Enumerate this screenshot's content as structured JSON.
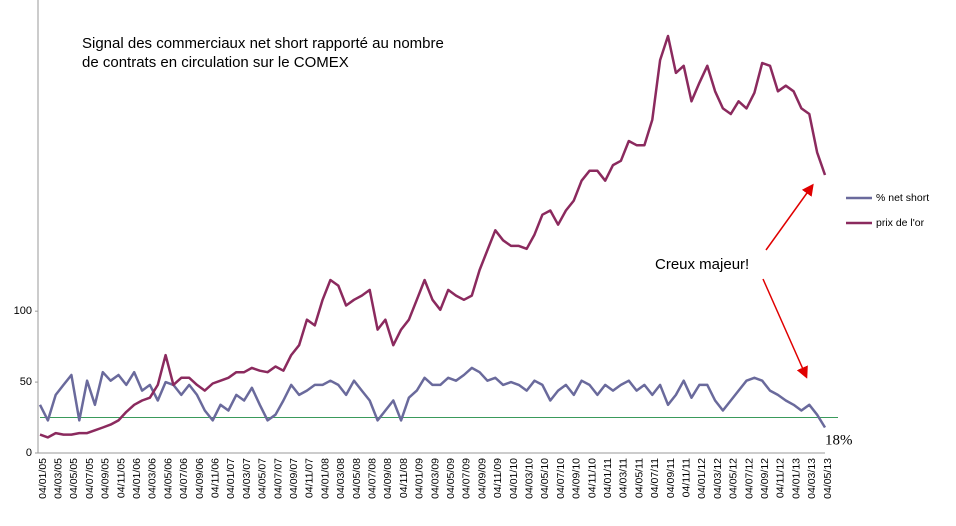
{
  "chart_data": {
    "type": "line",
    "title": [
      "Signal des commerciaux net short rapporté au nombre",
      "de contrats en circulation sur le COMEX"
    ],
    "categories": [
      "04/01/05",
      null,
      "04/03/05",
      null,
      "04/05/05",
      null,
      "04/07/05",
      null,
      "04/09/05",
      null,
      "04/11/05",
      null,
      "04/01/06",
      null,
      "04/03/06",
      null,
      "04/05/06",
      null,
      "04/07/06",
      null,
      "04/09/06",
      null,
      "04/11/06",
      null,
      "04/01/07",
      null,
      "04/03/07",
      null,
      "04/05/07",
      null,
      "04/07/07",
      null,
      "04/09/07",
      null,
      "04/11/07",
      null,
      "04/01/08",
      null,
      "04/03/08",
      null,
      "04/05/08",
      null,
      "04/07/08",
      null,
      "04/09/08",
      null,
      "04/11/08",
      null,
      "04/01/09",
      null,
      "04/03/09",
      null,
      "04/05/09",
      null,
      "04/07/09",
      null,
      "04/09/09",
      null,
      "04/11/09",
      null,
      "04/01/10",
      null,
      "04/03/10",
      null,
      "04/05/10",
      null,
      "04/07/10",
      null,
      "04/09/10",
      null,
      "04/11/10",
      null,
      "04/01/11",
      null,
      "04/03/11",
      null,
      "04/05/11",
      null,
      "04/07/11",
      null,
      "04/09/11",
      null,
      "04/11/11",
      null,
      "04/01/12",
      null,
      "04/03/12",
      null,
      "04/05/12",
      null,
      "04/07/12",
      null,
      "04/09/12",
      null,
      "04/11/12",
      null,
      "04/01/13",
      null,
      "04/03/13",
      null,
      "04/05/13"
    ],
    "series": [
      {
        "name": "% net short",
        "color": "#6a6a9c",
        "values": [
          34,
          23,
          41,
          48,
          55,
          23,
          51,
          34,
          57,
          51,
          55,
          48,
          57,
          44,
          48,
          37,
          50,
          48,
          41,
          48,
          41,
          30,
          23,
          34,
          30,
          41,
          37,
          46,
          34,
          23,
          27,
          37,
          48,
          41,
          44,
          48,
          48,
          51,
          48,
          41,
          51,
          44,
          37,
          23,
          30,
          37,
          23,
          39,
          44,
          53,
          48,
          48,
          53,
          51,
          55,
          60,
          57,
          51,
          53,
          48,
          50,
          48,
          44,
          51,
          48,
          37,
          44,
          48,
          41,
          51,
          48,
          41,
          48,
          44,
          48,
          51,
          44,
          48,
          41,
          48,
          34,
          41,
          51,
          39,
          48,
          48,
          37,
          30,
          37,
          44,
          51,
          53,
          51,
          44,
          41,
          37,
          34,
          30,
          34,
          27,
          18
        ]
      },
      {
        "name": "prix de l'or",
        "color": "#8b2a5e",
        "values": [
          13,
          11,
          14,
          13,
          13,
          14,
          14,
          16,
          18,
          20,
          23,
          29,
          34,
          37,
          39,
          48,
          69,
          48,
          53,
          53,
          48,
          44,
          49,
          51,
          53,
          57,
          57,
          60,
          58,
          57,
          61,
          58,
          69,
          76,
          94,
          90,
          108,
          122,
          118,
          104,
          108,
          111,
          115,
          87,
          94,
          76,
          87,
          94,
          108,
          122,
          108,
          101,
          115,
          111,
          108,
          111,
          129,
          143,
          157,
          150,
          146,
          146,
          144,
          154,
          168,
          171,
          161,
          171,
          178,
          192,
          199,
          199,
          192,
          203,
          206,
          220,
          217,
          217,
          235,
          277,
          294,
          268,
          273,
          248,
          261,
          273,
          255,
          243,
          239,
          248,
          243,
          254,
          275,
          273,
          255,
          259,
          255,
          243,
          239,
          212,
          196
        ]
      }
    ],
    "ylim": [
      0,
      318
    ],
    "yticks": [
      0,
      50,
      100
    ],
    "hline": {
      "value": 25,
      "color": "#3a9a5b"
    },
    "annotations": [
      "Creux majeur!",
      "18%"
    ],
    "legend": "right"
  }
}
